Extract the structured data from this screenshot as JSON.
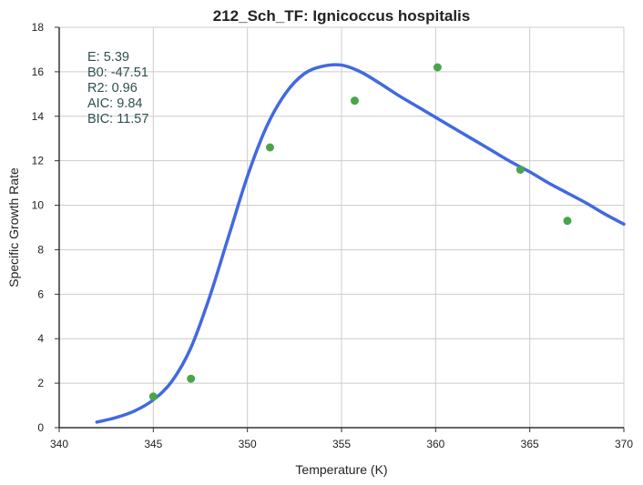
{
  "chart_data": {
    "type": "scatter",
    "title": "212_Sch_TF: Ignicoccus hospitalis",
    "xlabel": "Temperature (K)",
    "ylabel": "Specific Growth Rate",
    "xlim": [
      340,
      370
    ],
    "ylim": [
      0,
      18
    ],
    "xticks": [
      340,
      345,
      350,
      355,
      360,
      365,
      370
    ],
    "yticks": [
      0,
      2,
      4,
      6,
      8,
      10,
      12,
      14,
      16,
      18
    ],
    "grid": true,
    "points": {
      "color": "#4aa54a",
      "x": [
        345.0,
        347.0,
        351.2,
        355.7,
        360.1,
        364.5,
        367.0
      ],
      "y": [
        1.4,
        2.2,
        12.6,
        14.7,
        16.2,
        11.6,
        9.3
      ]
    },
    "fit": {
      "color": "#4169e1",
      "x": [
        342.0,
        343.0,
        344.0,
        345.0,
        346.0,
        347.0,
        348.0,
        349.0,
        350.0,
        351.0,
        352.0,
        353.0,
        354.0,
        355.0,
        356.0,
        357.0,
        358.0,
        359.0,
        360.0,
        361.0,
        362.0,
        363.0,
        364.0,
        365.0,
        366.0,
        367.0,
        368.0,
        369.0,
        370.0
      ],
      "y": [
        0.25,
        0.45,
        0.75,
        1.25,
        2.1,
        3.6,
        5.9,
        8.6,
        11.3,
        13.5,
        15.0,
        15.9,
        16.25,
        16.3,
        16.0,
        15.5,
        14.95,
        14.45,
        13.95,
        13.45,
        12.95,
        12.45,
        11.95,
        11.5,
        11.0,
        10.55,
        10.1,
        9.6,
        9.15
      ]
    },
    "stats": [
      "E:  5.39",
      "B0:  -47.51",
      "R2:  0.96",
      "AIC: 9.84",
      "BIC: 11.57"
    ]
  }
}
